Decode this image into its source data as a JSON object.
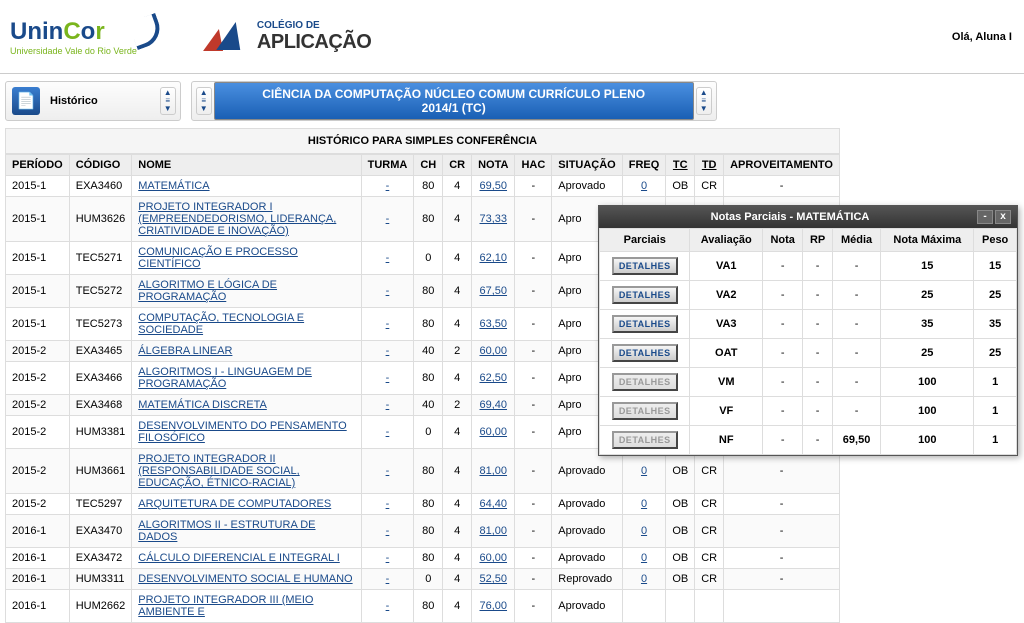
{
  "header": {
    "greeting": "Olá, Aluna I",
    "logo1_main": "UninCor",
    "logo1_sub": "Universidade Vale do Rio Verde",
    "logo2_line1": "COLÉGIO DE",
    "logo2_line2": "APLICAÇÃO"
  },
  "nav": {
    "history_label": "Histórico",
    "course_line1": "CIÊNCIA DA COMPUTAÇÃO NÚCLEO COMUM CURRÍCULO PLENO",
    "course_line2": "2014/1 (TC)"
  },
  "table": {
    "title": "HISTÓRICO PARA SIMPLES CONFERÊNCIA",
    "headers": {
      "periodo": "PERÍODO",
      "codigo": "CÓDIGO",
      "nome": "NOME",
      "turma": "TURMA",
      "ch": "CH",
      "cr": "CR",
      "nota": "NOTA",
      "hac": "HAC",
      "situacao": "SITUAÇÃO",
      "freq": "FREQ",
      "tc": "TC",
      "td": "TD",
      "aproveitamento": "APROVEITAMENTO"
    },
    "rows": [
      {
        "periodo": "2015-1",
        "codigo": "EXA3460",
        "nome": "MATEMÁTICA",
        "turma": "-",
        "ch": "80",
        "cr": "4",
        "nota": "69,50",
        "hac": "-",
        "situacao": "Aprovado",
        "freq": "0",
        "tc": "OB",
        "td": "CR",
        "aprov": "-"
      },
      {
        "periodo": "2015-1",
        "codigo": "HUM3626",
        "nome": "PROJETO INTEGRADOR I (EMPREENDEDORISMO, LIDERANÇA, CRIATIVIDADE E INOVAÇÃO)",
        "turma": "-",
        "ch": "80",
        "cr": "4",
        "nota": "73,33",
        "hac": "-",
        "situacao": "Apro",
        "freq": "",
        "tc": "",
        "td": "",
        "aprov": ""
      },
      {
        "periodo": "2015-1",
        "codigo": "TEC5271",
        "nome": "COMUNICAÇÃO E PROCESSO CIENTÍFICO",
        "turma": "-",
        "ch": "0",
        "cr": "4",
        "nota": "62,10",
        "hac": "-",
        "situacao": "Apro",
        "freq": "",
        "tc": "",
        "td": "",
        "aprov": ""
      },
      {
        "periodo": "2015-1",
        "codigo": "TEC5272",
        "nome": "ALGORITMO E LÓGICA DE PROGRAMAÇÃO",
        "turma": "-",
        "ch": "80",
        "cr": "4",
        "nota": "67,50",
        "hac": "-",
        "situacao": "Apro",
        "freq": "",
        "tc": "",
        "td": "",
        "aprov": ""
      },
      {
        "periodo": "2015-1",
        "codigo": "TEC5273",
        "nome": "COMPUTAÇÃO, TECNOLOGIA E SOCIEDADE",
        "turma": "-",
        "ch": "80",
        "cr": "4",
        "nota": "63,50",
        "hac": "-",
        "situacao": "Apro",
        "freq": "",
        "tc": "",
        "td": "",
        "aprov": ""
      },
      {
        "periodo": "2015-2",
        "codigo": "EXA3465",
        "nome": "ÁLGEBRA LINEAR",
        "turma": "-",
        "ch": "40",
        "cr": "2",
        "nota": "60,00",
        "hac": "-",
        "situacao": "Apro",
        "freq": "",
        "tc": "",
        "td": "",
        "aprov": ""
      },
      {
        "periodo": "2015-2",
        "codigo": "EXA3466",
        "nome": "ALGORITMOS I - LINGUAGEM DE PROGRAMAÇÃO",
        "turma": "-",
        "ch": "80",
        "cr": "4",
        "nota": "62,50",
        "hac": "-",
        "situacao": "Apro",
        "freq": "",
        "tc": "",
        "td": "",
        "aprov": ""
      },
      {
        "periodo": "2015-2",
        "codigo": "EXA3468",
        "nome": "MATEMÁTICA DISCRETA",
        "turma": "-",
        "ch": "40",
        "cr": "2",
        "nota": "69,40",
        "hac": "-",
        "situacao": "Apro",
        "freq": "",
        "tc": "",
        "td": "",
        "aprov": ""
      },
      {
        "periodo": "2015-2",
        "codigo": "HUM3381",
        "nome": "DESENVOLVIMENTO DO PENSAMENTO FILOSÓFICO",
        "turma": "-",
        "ch": "0",
        "cr": "4",
        "nota": "60,00",
        "hac": "-",
        "situacao": "Apro",
        "freq": "",
        "tc": "",
        "td": "",
        "aprov": ""
      },
      {
        "periodo": "2015-2",
        "codigo": "HUM3661",
        "nome": "PROJETO INTEGRADOR II (RESPONSABILIDADE SOCIAL, EDUCAÇÃO, ÉTNICO-RACIAL)",
        "turma": "-",
        "ch": "80",
        "cr": "4",
        "nota": "81,00",
        "hac": "-",
        "situacao": "Aprovado",
        "freq": "0",
        "tc": "OB",
        "td": "CR",
        "aprov": "-"
      },
      {
        "periodo": "2015-2",
        "codigo": "TEC5297",
        "nome": "ARQUITETURA DE COMPUTADORES",
        "turma": "-",
        "ch": "80",
        "cr": "4",
        "nota": "64,40",
        "hac": "-",
        "situacao": "Aprovado",
        "freq": "0",
        "tc": "OB",
        "td": "CR",
        "aprov": "-"
      },
      {
        "periodo": "2016-1",
        "codigo": "EXA3470",
        "nome": "ALGORITMOS II - ESTRUTURA DE DADOS",
        "turma": "-",
        "ch": "80",
        "cr": "4",
        "nota": "81,00",
        "hac": "-",
        "situacao": "Aprovado",
        "freq": "0",
        "tc": "OB",
        "td": "CR",
        "aprov": "-"
      },
      {
        "periodo": "2016-1",
        "codigo": "EXA3472",
        "nome": "CÁLCULO DIFERENCIAL E INTEGRAL I",
        "turma": "-",
        "ch": "80",
        "cr": "4",
        "nota": "60,00",
        "hac": "-",
        "situacao": "Aprovado",
        "freq": "0",
        "tc": "OB",
        "td": "CR",
        "aprov": "-"
      },
      {
        "periodo": "2016-1",
        "codigo": "HUM3311",
        "nome": "DESENVOLVIMENTO SOCIAL E HUMANO",
        "turma": "-",
        "ch": "0",
        "cr": "4",
        "nota": "52,50",
        "hac": "-",
        "situacao": "Reprovado",
        "freq": "0",
        "tc": "OB",
        "td": "CR",
        "aprov": "-"
      },
      {
        "periodo": "2016-1",
        "codigo": "HUM2662",
        "nome": "PROJETO INTEGRADOR III (MEIO AMBIENTE E",
        "turma": "-",
        "ch": "80",
        "cr": "4",
        "nota": "76,00",
        "hac": "-",
        "situacao": "Aprovado",
        "freq": "",
        "tc": "",
        "td": "",
        "aprov": ""
      }
    ]
  },
  "popup": {
    "title": "Notas Parciais - MATEMÁTICA",
    "headers": {
      "parciais": "Parciais",
      "avaliacao": "Avaliação",
      "nota": "Nota",
      "rp": "RP",
      "media": "Média",
      "nota_max": "Nota Máxima",
      "peso": "Peso"
    },
    "btn_label": "DETALHES",
    "rows": [
      {
        "aval": "VA1",
        "nota": "-",
        "rp": "-",
        "media": "-",
        "max": "15",
        "peso": "15",
        "enabled": true
      },
      {
        "aval": "VA2",
        "nota": "-",
        "rp": "-",
        "media": "-",
        "max": "25",
        "peso": "25",
        "enabled": true
      },
      {
        "aval": "VA3",
        "nota": "-",
        "rp": "-",
        "media": "-",
        "max": "35",
        "peso": "35",
        "enabled": true
      },
      {
        "aval": "OAT",
        "nota": "-",
        "rp": "-",
        "media": "-",
        "max": "25",
        "peso": "25",
        "enabled": true
      },
      {
        "aval": "VM",
        "nota": "-",
        "rp": "-",
        "media": "-",
        "max": "100",
        "peso": "1",
        "enabled": false
      },
      {
        "aval": "VF",
        "nota": "-",
        "rp": "-",
        "media": "-",
        "max": "100",
        "peso": "1",
        "enabled": false
      },
      {
        "aval": "NF",
        "nota": "-",
        "rp": "-",
        "media": "69,50",
        "max": "100",
        "peso": "1",
        "enabled": false
      }
    ]
  }
}
